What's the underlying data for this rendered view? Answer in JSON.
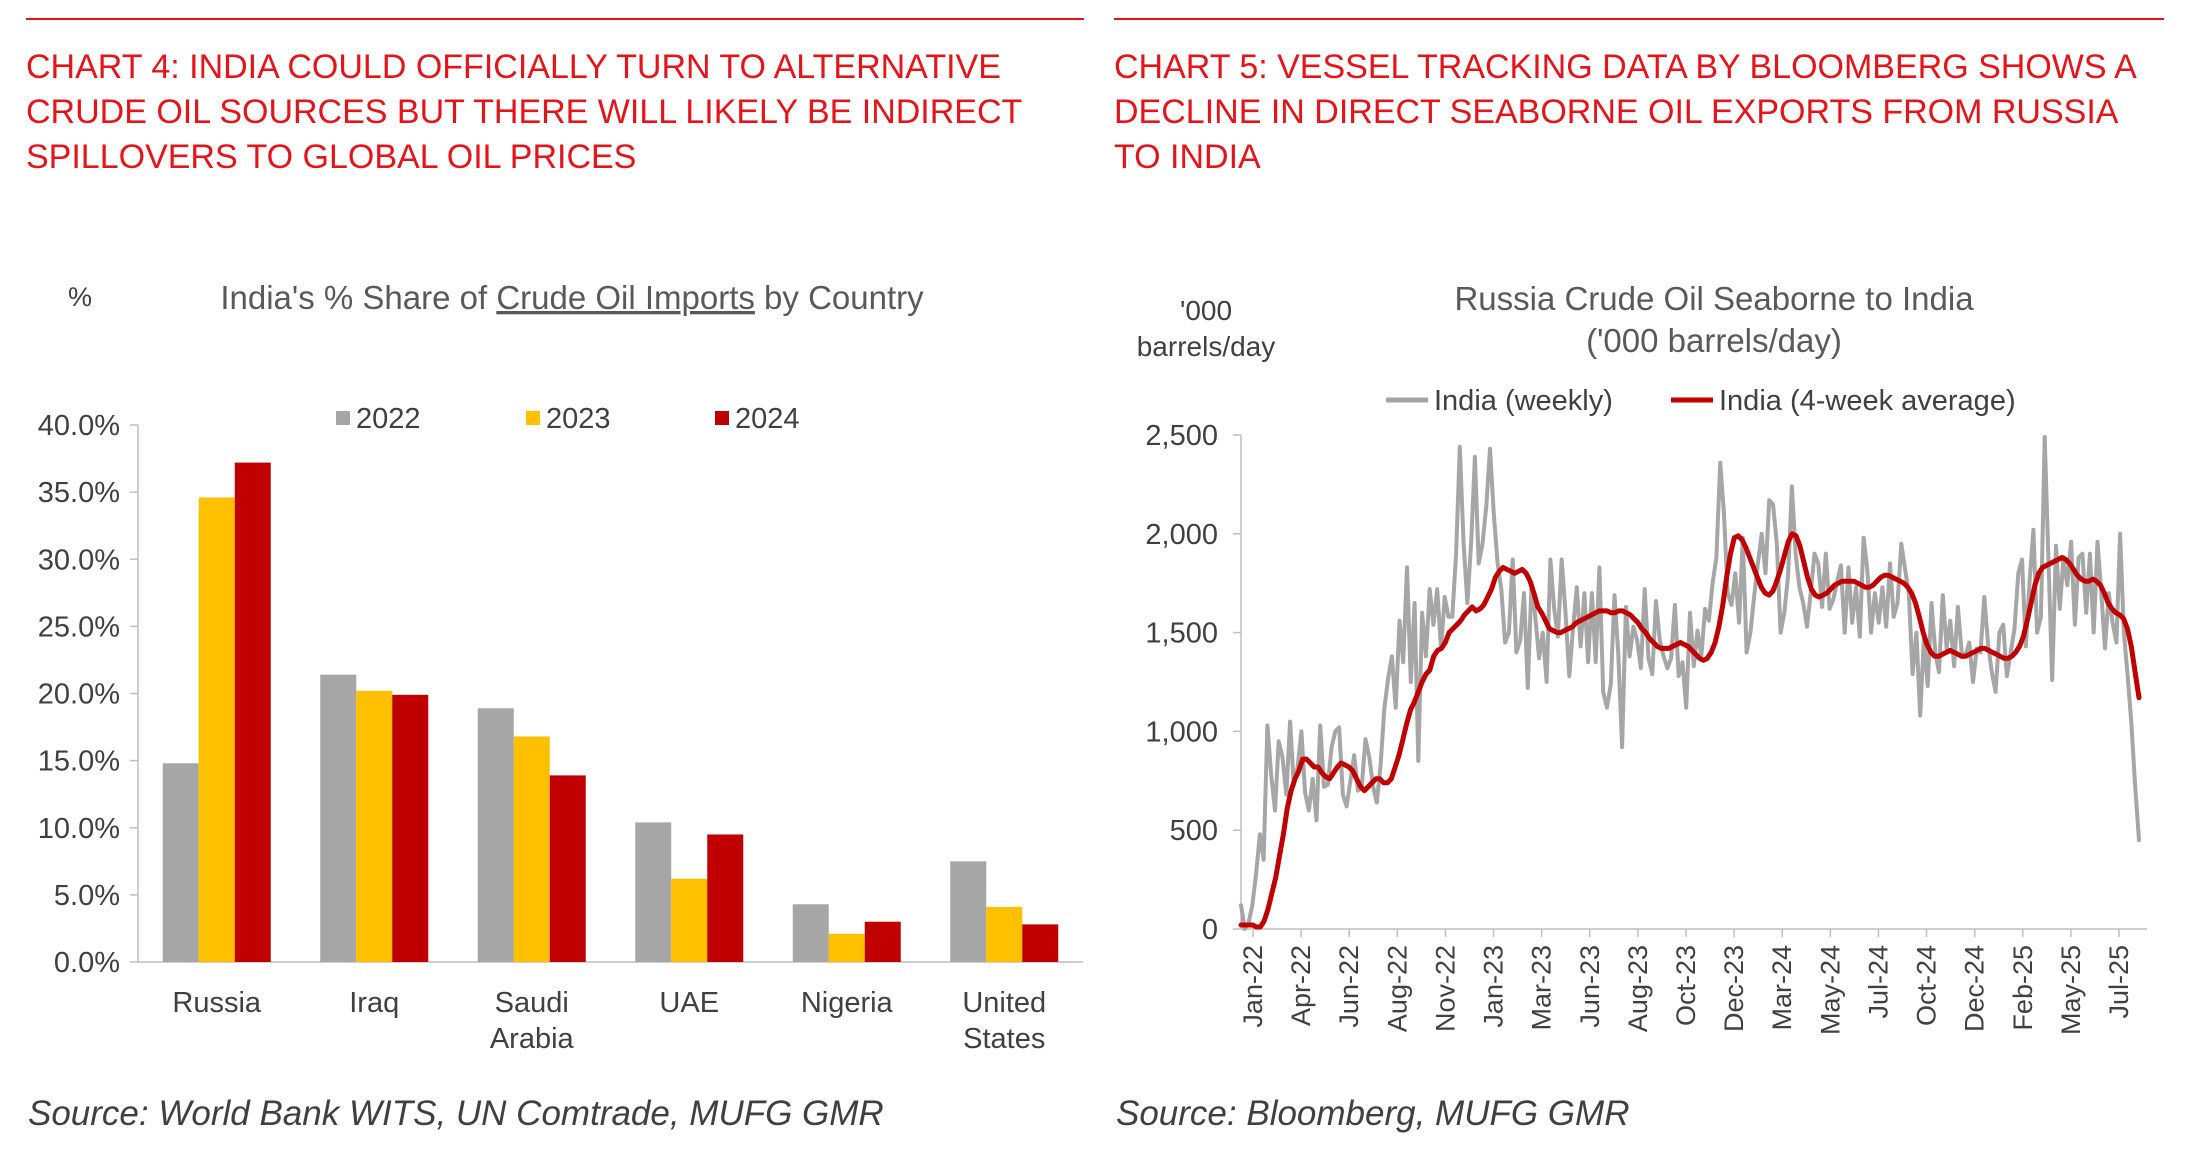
{
  "colors": {
    "accent": "#e3151a",
    "gray": "#a6a6a6",
    "gold": "#ffc000",
    "red": "#c00000",
    "text": "#404040"
  },
  "chart4": {
    "heading": "CHART 4: INDIA COULD OFFICIALLY TURN TO ALTERNATIVE CRUDE OIL SOURCES BUT THERE WILL LIKELY BE INDIRECT SPILLOVERS TO GLOBAL OIL PRICES",
    "source": "Source: World Bank WITS, UN Comtrade, MUFG GMR"
  },
  "chart5": {
    "heading": "CHART 5: VESSEL TRACKING DATA BY BLOOMBERG SHOWS A DECLINE IN DIRECT SEABORNE OIL EXPORTS FROM RUSSIA TO INDIA",
    "source": "Source: Bloomberg, MUFG GMR"
  },
  "chart_data": [
    {
      "type": "bar",
      "title_pre": "India's % Share of ",
      "title_underlined": "Crude Oil Imports",
      "title_post": " by Country",
      "ylabel": "%",
      "ylim": [
        0,
        40
      ],
      "yticks": [
        "0.0%",
        "5.0%",
        "10.0%",
        "15.0%",
        "20.0%",
        "25.0%",
        "30.0%",
        "35.0%",
        "40.0%"
      ],
      "categories": [
        [
          "Russia"
        ],
        [
          "Iraq"
        ],
        [
          "Saudi",
          "Arabia"
        ],
        [
          "UAE"
        ],
        [
          "Nigeria"
        ],
        [
          "United",
          "States"
        ]
      ],
      "legend_position": "top-center",
      "series": [
        {
          "name": "2022",
          "color": "#a6a6a6",
          "values": [
            14.8,
            21.4,
            18.9,
            10.4,
            4.3,
            7.5
          ]
        },
        {
          "name": "2023",
          "color": "#ffc000",
          "values": [
            34.6,
            20.2,
            16.8,
            6.2,
            2.1,
            4.1
          ]
        },
        {
          "name": "2024",
          "color": "#c00000",
          "values": [
            37.2,
            19.9,
            13.9,
            9.5,
            3.0,
            2.8
          ]
        }
      ]
    },
    {
      "type": "line",
      "title": "Russia Crude Oil Seaborne to India",
      "subtitle": "('000 barrels/day)",
      "ylabel": [
        "'000",
        "barrels/day"
      ],
      "ylim": [
        0,
        2500
      ],
      "yticks": [
        "0",
        "500",
        "1,000",
        "1,500",
        "2,000",
        "2,500"
      ],
      "x_start": "Jan-22",
      "x_end": "Aug-25",
      "xticks": [
        "Jan-22",
        "Apr-22",
        "Jun-22",
        "Aug-22",
        "Nov-22",
        "Jan-23",
        "Mar-23",
        "Jun-23",
        "Aug-23",
        "Oct-23",
        "Dec-23",
        "Mar-24",
        "May-24",
        "Jul-24",
        "Oct-24",
        "Dec-24",
        "Feb-25",
        "May-25",
        "Jul-25"
      ],
      "legend_position": "top",
      "series": [
        {
          "name": "India  (weekly)",
          "color": "#a6a6a6",
          "values": [
            120,
            0,
            30,
            120,
            280,
            480,
            350,
            1030,
            780,
            600,
            950,
            870,
            680,
            1050,
            730,
            820,
            1000,
            690,
            600,
            760,
            550,
            1030,
            720,
            730,
            920,
            1000,
            1020,
            680,
            620,
            750,
            880,
            700,
            720,
            960,
            870,
            720,
            640,
            830,
            1120,
            1270,
            1380,
            1120,
            1560,
            1350,
            1830,
            1250,
            1650,
            850,
            1600,
            1380,
            1720,
            1540,
            1720,
            1420,
            1680,
            1580,
            1580,
            1900,
            2440,
            1950,
            1650,
            1960,
            2390,
            1850,
            1950,
            2140,
            2430,
            2100,
            1850,
            1720,
            1450,
            1500,
            1870,
            1400,
            1460,
            1700,
            1220,
            1750,
            1580,
            1370,
            1500,
            1250,
            1870,
            1620,
            1480,
            1870,
            1600,
            1280,
            1520,
            1730,
            1430,
            1700,
            1350,
            1700,
            1350,
            1830,
            1200,
            1120,
            1240,
            1690,
            1390,
            920,
            1630,
            1380,
            1530,
            1460,
            1320,
            1720,
            1370,
            1290,
            1660,
            1460,
            1380,
            1320,
            1370,
            1640,
            1280,
            1350,
            1120,
            1600,
            1330,
            1510,
            1380,
            1620,
            1560,
            1750,
            1880,
            2360,
            2100,
            1700,
            1640,
            1800,
            1550,
            1980,
            1400,
            1500,
            1680,
            1850,
            2000,
            1800,
            2170,
            2150,
            1950,
            1500,
            1600,
            1790,
            2240,
            1900,
            1730,
            1650,
            1530,
            1700,
            1900,
            1850,
            1630,
            1900,
            1620,
            1670,
            1760,
            1840,
            1500,
            1830,
            1550,
            1730,
            1480,
            1980,
            1820,
            1500,
            1700,
            1550,
            1730,
            1530,
            1850,
            1580,
            1650,
            1950,
            1820,
            1700,
            1290,
            1500,
            1080,
            1470,
            1230,
            1650,
            1400,
            1300,
            1690,
            1420,
            1560,
            1330,
            1630,
            1400,
            1380,
            1450,
            1250,
            1420,
            1400,
            1680,
            1440,
            1300,
            1200,
            1500,
            1540,
            1280,
            1400,
            1520,
            1800,
            1870,
            1430,
            1760,
            2020,
            1500,
            1580,
            2490,
            1880,
            1260,
            1940,
            1620,
            1880,
            1740,
            1960,
            1540,
            1880,
            1900,
            1600,
            1900,
            1500,
            1960,
            1700,
            1420,
            1700,
            1550,
            1450,
            2000,
            1500,
            1280,
            1030,
            720,
            450
          ]
        },
        {
          "name": "India  (4-week average)",
          "color": "#c00000",
          "values": [
            20,
            20,
            20,
            20,
            10,
            10,
            40,
            100,
            180,
            260,
            370,
            480,
            610,
            700,
            760,
            800,
            860,
            860,
            840,
            820,
            820,
            790,
            770,
            760,
            790,
            820,
            840,
            830,
            820,
            800,
            760,
            720,
            700,
            720,
            740,
            760,
            760,
            740,
            740,
            760,
            820,
            880,
            960,
            1040,
            1110,
            1150,
            1200,
            1250,
            1290,
            1310,
            1380,
            1410,
            1420,
            1450,
            1500,
            1520,
            1540,
            1560,
            1590,
            1610,
            1630,
            1610,
            1620,
            1640,
            1680,
            1720,
            1780,
            1810,
            1830,
            1820,
            1810,
            1800,
            1810,
            1820,
            1800,
            1760,
            1700,
            1630,
            1600,
            1560,
            1520,
            1510,
            1500,
            1500,
            1510,
            1520,
            1530,
            1550,
            1560,
            1570,
            1580,
            1590,
            1600,
            1610,
            1610,
            1610,
            1600,
            1600,
            1610,
            1610,
            1600,
            1590,
            1570,
            1550,
            1520,
            1500,
            1470,
            1450,
            1430,
            1420,
            1420,
            1420,
            1430,
            1440,
            1450,
            1440,
            1430,
            1410,
            1390,
            1370,
            1360,
            1370,
            1400,
            1450,
            1530,
            1640,
            1780,
            1900,
            1980,
            1990,
            1970,
            1930,
            1880,
            1830,
            1780,
            1730,
            1700,
            1690,
            1710,
            1760,
            1820,
            1890,
            1960,
            2000,
            1990,
            1940,
            1860,
            1780,
            1720,
            1690,
            1680,
            1690,
            1700,
            1720,
            1740,
            1750,
            1760,
            1760,
            1760,
            1760,
            1750,
            1740,
            1730,
            1730,
            1740,
            1760,
            1780,
            1790,
            1790,
            1780,
            1770,
            1760,
            1750,
            1730,
            1700,
            1650,
            1580,
            1500,
            1440,
            1400,
            1380,
            1380,
            1390,
            1400,
            1410,
            1400,
            1390,
            1380,
            1380,
            1390,
            1400,
            1410,
            1420,
            1420,
            1410,
            1400,
            1390,
            1380,
            1370,
            1370,
            1380,
            1400,
            1430,
            1480,
            1560,
            1650,
            1740,
            1800,
            1830,
            1840,
            1850,
            1860,
            1870,
            1880,
            1870,
            1850,
            1820,
            1790,
            1770,
            1760,
            1760,
            1770,
            1760,
            1740,
            1700,
            1650,
            1620,
            1600,
            1590,
            1570,
            1520,
            1430,
            1300,
            1170
          ]
        }
      ]
    }
  ]
}
